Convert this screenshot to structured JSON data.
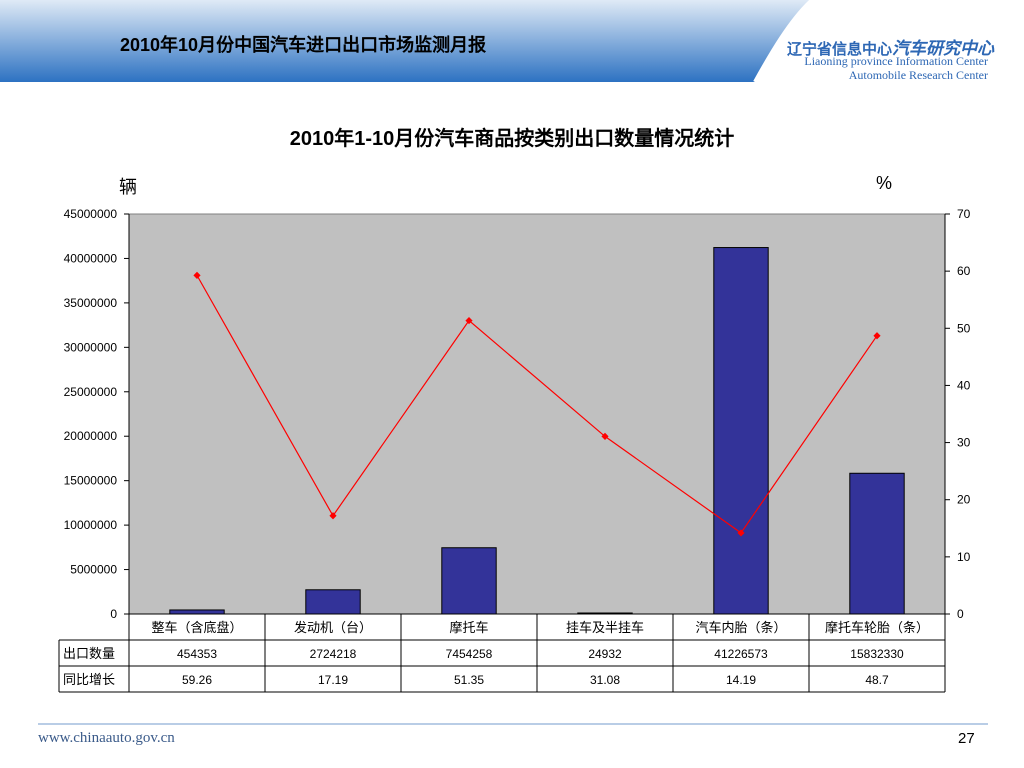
{
  "header": {
    "title": "2010年10月份中国汽车进口出口市场监测月报",
    "logo_cn_prefix": "辽宁省信息中心",
    "logo_cn_main": "汽车研究中心",
    "logo_en_line1": "Liaoning province Information Center",
    "logo_en_line2": "Automobile Research Center"
  },
  "chart_data": {
    "type": "bar",
    "title": "2010年1-10月份汽车商品按类别出口数量情况统计",
    "ylabel_left": "辆",
    "ylabel_right": "%",
    "categories": [
      "整车（含底盘）",
      "发动机（台）",
      "摩托车",
      "挂车及半挂车",
      "汽车内胎（条）",
      "摩托车轮胎（条）"
    ],
    "series": [
      {
        "name": "出口数量",
        "kind": "bar",
        "axis": "left",
        "color": "#333399",
        "values": [
          454353,
          2724218,
          7454258,
          24932,
          41226573,
          15832330
        ],
        "labels": [
          "454353",
          "2724218",
          "7454258",
          "24932",
          "41226573",
          "15832330"
        ]
      },
      {
        "name": "同比增长",
        "kind": "line",
        "axis": "right",
        "color": "#ff0000",
        "values": [
          59.26,
          17.19,
          51.35,
          31.08,
          14.19,
          48.7
        ],
        "labels": [
          "59.26",
          "17.19",
          "51.35",
          "31.08",
          "14.19",
          "48.7"
        ]
      }
    ],
    "ylim_left": [
      0,
      45000000
    ],
    "ylim_right": [
      0,
      70
    ],
    "yticks_left": [
      "0",
      "5000000",
      "10000000",
      "15000000",
      "20000000",
      "25000000",
      "30000000",
      "35000000",
      "40000000",
      "45000000"
    ],
    "yticks_right": [
      "0",
      "10",
      "20",
      "30",
      "40",
      "50",
      "60",
      "70"
    ],
    "plot_background": "#c0c0c0",
    "data_table": true
  },
  "footer": {
    "url": "www.chinaauto.gov.cn",
    "page_number": "27"
  }
}
